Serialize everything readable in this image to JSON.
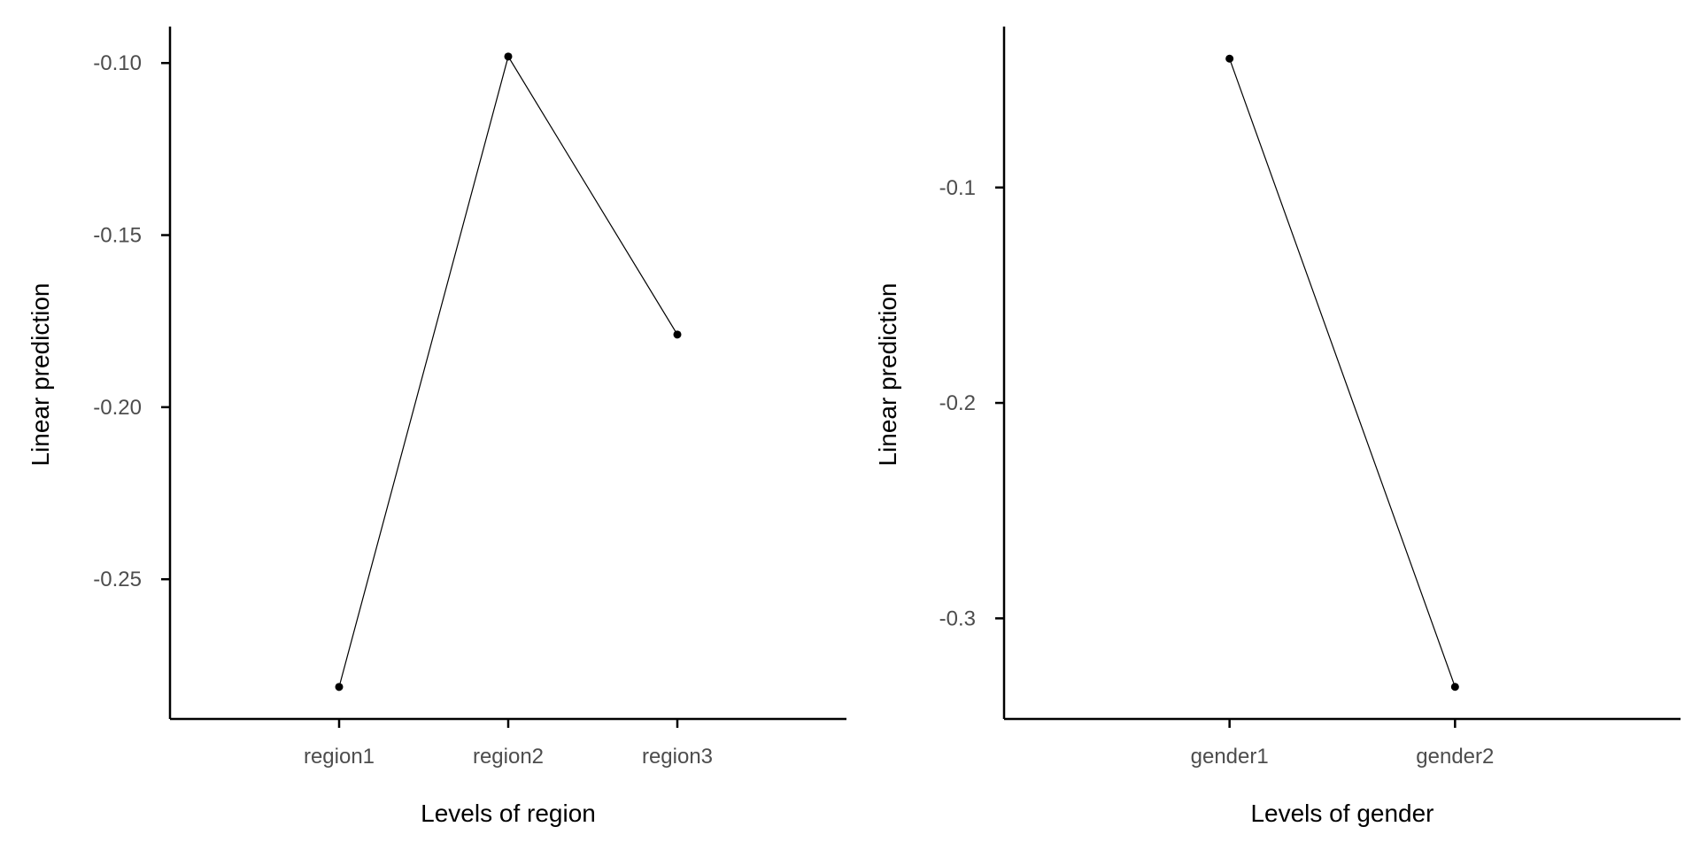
{
  "chart_data": [
    {
      "type": "line",
      "title": "",
      "xlabel": "Levels of region",
      "ylabel": "Linear prediction",
      "categories": [
        "region1",
        "region2",
        "region3"
      ],
      "series": [
        {
          "values": [
            -0.2813,
            -0.0981,
            -0.1789
          ]
        }
      ],
      "ylim": [
        -0.2906,
        -0.0894
      ],
      "yticks": [
        -0.25,
        -0.2,
        -0.15,
        -0.1
      ],
      "ytick_labels": [
        "-0.25",
        "-0.20",
        "-0.15",
        "-0.10"
      ],
      "grid": false,
      "legend": "none"
    },
    {
      "type": "line",
      "title": "",
      "xlabel": "Levels of gender",
      "ylabel": "Linear prediction",
      "categories": [
        "gender1",
        "gender2"
      ],
      "series": [
        {
          "values": [
            -0.0402,
            -0.3318
          ]
        }
      ],
      "ylim": [
        -0.3467,
        -0.0253
      ],
      "yticks": [
        -0.3,
        -0.2,
        -0.1
      ],
      "ytick_labels": [
        "-0.3",
        "-0.2",
        "-0.1"
      ],
      "grid": false,
      "legend": "none"
    }
  ]
}
